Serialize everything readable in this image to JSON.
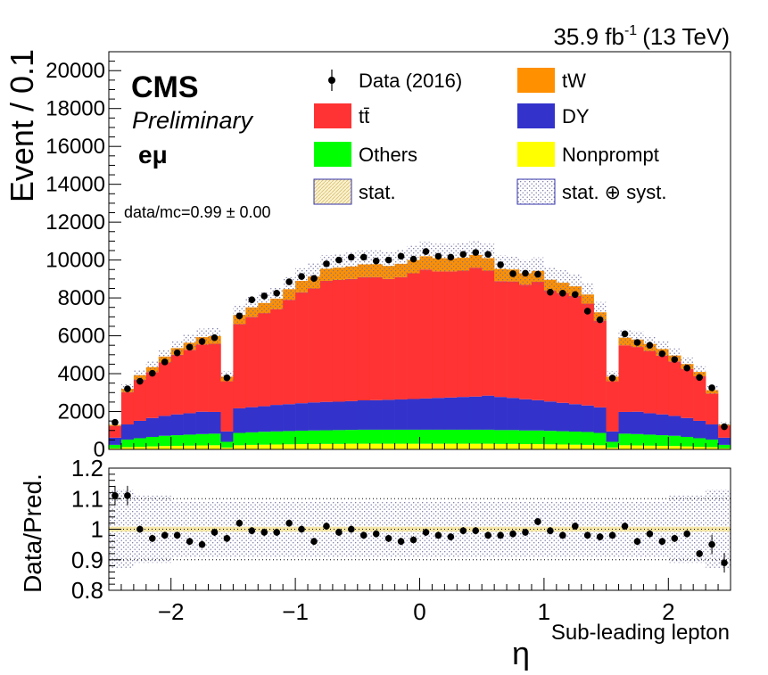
{
  "header": {
    "lumi": "35.9 fb",
    "lumi_sup": "-1",
    "energy": "(13 TeV)"
  },
  "labels": {
    "cms": "CMS",
    "preliminary": "Preliminary",
    "channel": "eμ",
    "ratio_text": "data/mc=0.99 ± 0.00"
  },
  "legend": {
    "entries": [
      {
        "label": "Data (2016)",
        "style": "marker",
        "color": "#000000"
      },
      {
        "label": "tW",
        "style": "box",
        "color": "#ff9000"
      },
      {
        "label": "tt̄",
        "style": "box",
        "color": "#ff3333"
      },
      {
        "label": "DY",
        "style": "box",
        "color": "#3333cc"
      },
      {
        "label": "Others",
        "style": "box",
        "color": "#00ff00"
      },
      {
        "label": "Nonprompt",
        "style": "box",
        "color": "#ffff00"
      },
      {
        "label": "stat.",
        "style": "hatch-yellow",
        "color": "#e8d39a"
      },
      {
        "label": "stat. ⊕ syst.",
        "style": "hatch-blue",
        "color": "#7a7aa8"
      }
    ]
  },
  "chart_data": {
    "type": "bar",
    "stacked": true,
    "title": "",
    "ylabel": "Event / 0.1",
    "ratio_ylabel": "Data/Pred.",
    "xlabel": "η",
    "xlabel_sub": "Sub-leading lepton",
    "xlim": [
      -2.5,
      2.5
    ],
    "ylim": [
      0,
      21000
    ],
    "ratio_ylim": [
      0.8,
      1.2
    ],
    "y_ticks": [
      0,
      2000,
      4000,
      6000,
      8000,
      10000,
      12000,
      14000,
      16000,
      18000,
      20000
    ],
    "ratio_ticks": [
      "0.8",
      "0.9",
      "1",
      "1.1",
      "1.2"
    ],
    "x_ticks": [
      -2,
      -1,
      0,
      1,
      2
    ],
    "x_tick_labels": [
      "−2",
      "−1",
      "0",
      "1",
      "2"
    ],
    "bin_width": 0.1,
    "bin_centers": [
      -2.45,
      -2.35,
      -2.25,
      -2.15,
      -2.05,
      -1.95,
      -1.85,
      -1.75,
      -1.65,
      -1.55,
      -1.45,
      -1.35,
      -1.25,
      -1.15,
      -1.05,
      -0.95,
      -0.85,
      -0.75,
      -0.65,
      -0.55,
      -0.45,
      -0.35,
      -0.25,
      -0.15,
      -0.05,
      0.05,
      0.15,
      0.25,
      0.35,
      0.45,
      0.55,
      0.65,
      0.75,
      0.85,
      0.95,
      1.05,
      1.15,
      1.25,
      1.35,
      1.45,
      1.55,
      1.65,
      1.75,
      1.85,
      1.95,
      2.05,
      2.15,
      2.25,
      2.35,
      2.45
    ],
    "series": [
      {
        "name": "Nonprompt",
        "color": "#ffff00",
        "values": [
          60,
          120,
          140,
          160,
          180,
          190,
          200,
          210,
          220,
          100,
          220,
          240,
          250,
          260,
          270,
          280,
          280,
          290,
          290,
          300,
          300,
          300,
          300,
          300,
          300,
          300,
          300,
          300,
          300,
          300,
          300,
          290,
          290,
          280,
          280,
          270,
          260,
          250,
          240,
          220,
          100,
          220,
          210,
          200,
          190,
          180,
          160,
          140,
          120,
          60
        ]
      },
      {
        "name": "Others",
        "color": "#00ff00",
        "values": [
          180,
          400,
          450,
          500,
          540,
          560,
          580,
          600,
          610,
          300,
          650,
          660,
          680,
          690,
          700,
          710,
          720,
          720,
          730,
          730,
          740,
          740,
          740,
          740,
          740,
          740,
          740,
          740,
          740,
          740,
          740,
          730,
          730,
          720,
          720,
          710,
          700,
          690,
          680,
          650,
          300,
          610,
          600,
          580,
          560,
          540,
          500,
          450,
          400,
          180
        ]
      },
      {
        "name": "DY",
        "color": "#3333cc",
        "values": [
          380,
          800,
          920,
          1000,
          1050,
          1100,
          1130,
          1180,
          1150,
          550,
          1300,
          1330,
          1350,
          1400,
          1420,
          1450,
          1480,
          1500,
          1500,
          1520,
          1550,
          1560,
          1580,
          1600,
          1620,
          1650,
          1680,
          1700,
          1730,
          1750,
          1800,
          1750,
          1700,
          1650,
          1600,
          1550,
          1500,
          1450,
          1400,
          1350,
          550,
          1150,
          1180,
          1130,
          1100,
          1050,
          1000,
          920,
          800,
          380
        ]
      },
      {
        "name": "tt̄",
        "color": "#ff3333",
        "values": [
          620,
          1700,
          2180,
          2420,
          2820,
          3150,
          3350,
          3550,
          3600,
          2650,
          4450,
          4770,
          4920,
          5050,
          5510,
          5860,
          6020,
          6390,
          6430,
          6450,
          6510,
          6500,
          6380,
          6460,
          6640,
          6810,
          6680,
          6660,
          6670,
          6810,
          6600,
          6120,
          6150,
          6050,
          6250,
          5870,
          5800,
          5710,
          5380,
          4580,
          2650,
          3520,
          3420,
          3290,
          3100,
          2880,
          2590,
          2350,
          1630,
          630
        ]
      },
      {
        "name": "tW",
        "color": "#ff9000",
        "values": [
          60,
          180,
          230,
          260,
          310,
          350,
          370,
          390,
          400,
          240,
          480,
          500,
          530,
          560,
          560,
          600,
          630,
          640,
          650,
          660,
          670,
          680,
          690,
          700,
          700,
          700,
          700,
          690,
          680,
          670,
          660,
          640,
          630,
          600,
          580,
          560,
          540,
          510,
          480,
          440,
          240,
          400,
          390,
          370,
          350,
          310,
          260,
          230,
          180,
          60
        ]
      }
    ],
    "total_mc": [
      1300,
      3200,
      3920,
      4340,
      4900,
      5350,
      5630,
      5930,
      5980,
      3840,
      7100,
      7500,
      7730,
      7960,
      8460,
      8900,
      9130,
      9540,
      9600,
      9660,
      9770,
      9780,
      9690,
      9800,
      10000,
      10200,
      10100,
      10090,
      10120,
      10270,
      10100,
      9530,
      9500,
      9300,
      9430,
      8960,
      8800,
      8610,
      8180,
      7240,
      3840,
      5900,
      5800,
      5570,
      5300,
      4960,
      4510,
      4090,
      3130,
      1330
    ],
    "data": [
      1430,
      3200,
      3600,
      4020,
      4620,
      5100,
      5400,
      5700,
      5900,
      3780,
      7050,
      7900,
      8100,
      8250,
      8850,
      9130,
      9030,
      9800,
      10000,
      10150,
      10150,
      9950,
      10000,
      10200,
      10050,
      10450,
      10200,
      10150,
      10300,
      10400,
      10300,
      9750,
      9280,
      9300,
      9250,
      8300,
      8250,
      8180,
      7300,
      6850,
      3770,
      6100,
      5650,
      5500,
      5050,
      4750,
      4300,
      3800,
      3250,
      1200
    ],
    "ratio": [
      1.11,
      1.11,
      1.0,
      0.97,
      0.98,
      0.98,
      0.96,
      0.95,
      0.99,
      0.97,
      1.02,
      0.995,
      0.99,
      0.99,
      1.02,
      1.0,
      0.96,
      1.01,
      0.99,
      1.0,
      0.98,
      0.985,
      0.97,
      0.96,
      0.965,
      0.99,
      0.98,
      0.975,
      0.995,
      0.995,
      0.98,
      0.98,
      0.985,
      0.99,
      1.025,
      0.995,
      0.98,
      1.01,
      0.98,
      0.975,
      0.98,
      1.01,
      0.96,
      0.985,
      0.96,
      0.97,
      0.985,
      0.92,
      0.95,
      0.89
    ]
  }
}
